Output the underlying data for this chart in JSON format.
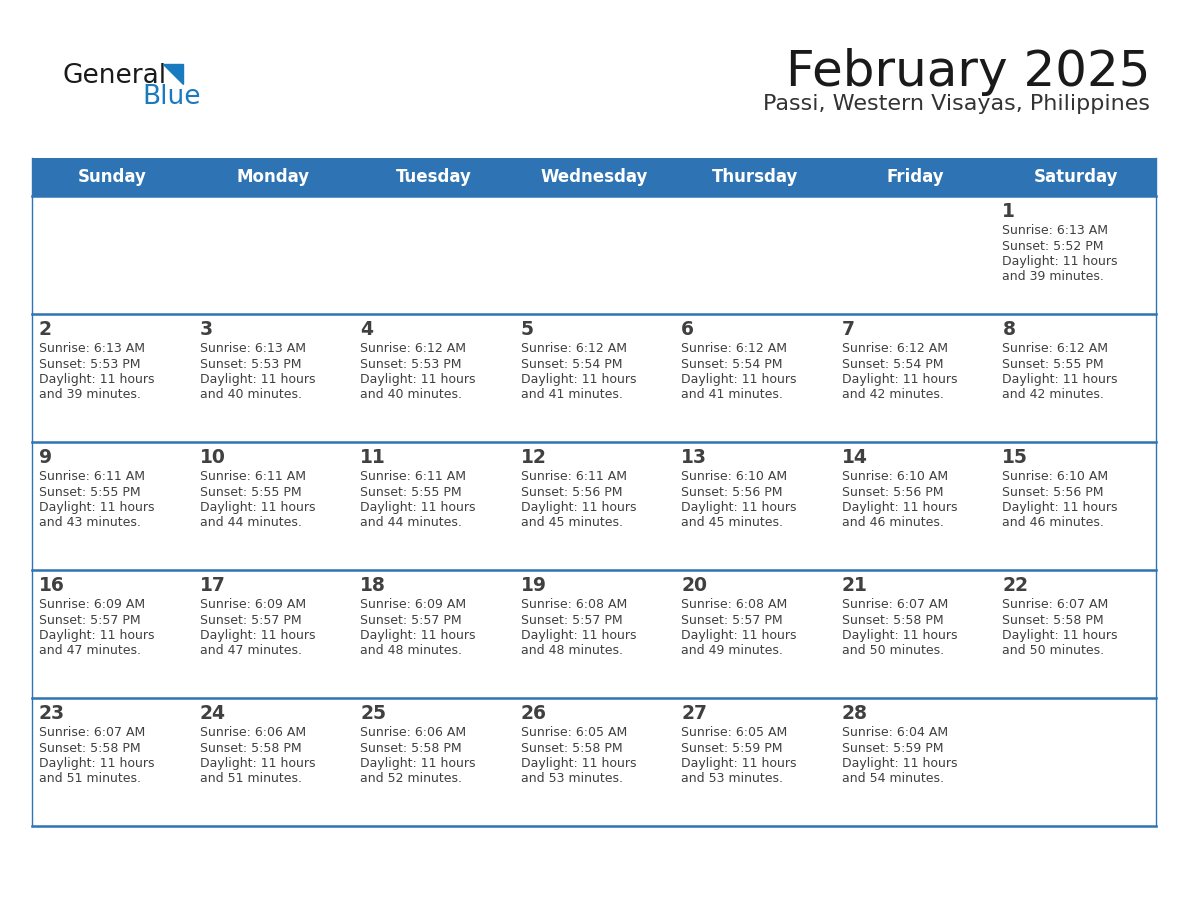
{
  "title": "February 2025",
  "subtitle": "Passi, Western Visayas, Philippines",
  "days_of_week": [
    "Sunday",
    "Monday",
    "Tuesday",
    "Wednesday",
    "Thursday",
    "Friday",
    "Saturday"
  ],
  "header_bg": "#2E74B5",
  "header_text": "#FFFFFF",
  "cell_bg": "#FFFFFF",
  "row1_bg": "#F2F2F2",
  "divider_color": "#2E74B5",
  "text_color": "#404040",
  "title_color": "#1a1a1a",
  "subtitle_color": "#333333",
  "logo_general_color": "#1a1a1a",
  "logo_blue_color": "#1a7abf",
  "calendar_data": [
    [
      null,
      null,
      null,
      null,
      null,
      null,
      {
        "day": 1,
        "sunrise": "6:13 AM",
        "sunset": "5:52 PM",
        "daylight": "11 hours and 39 minutes."
      }
    ],
    [
      {
        "day": 2,
        "sunrise": "6:13 AM",
        "sunset": "5:53 PM",
        "daylight": "11 hours and 39 minutes."
      },
      {
        "day": 3,
        "sunrise": "6:13 AM",
        "sunset": "5:53 PM",
        "daylight": "11 hours and 40 minutes."
      },
      {
        "day": 4,
        "sunrise": "6:12 AM",
        "sunset": "5:53 PM",
        "daylight": "11 hours and 40 minutes."
      },
      {
        "day": 5,
        "sunrise": "6:12 AM",
        "sunset": "5:54 PM",
        "daylight": "11 hours and 41 minutes."
      },
      {
        "day": 6,
        "sunrise": "6:12 AM",
        "sunset": "5:54 PM",
        "daylight": "11 hours and 41 minutes."
      },
      {
        "day": 7,
        "sunrise": "6:12 AM",
        "sunset": "5:54 PM",
        "daylight": "11 hours and 42 minutes."
      },
      {
        "day": 8,
        "sunrise": "6:12 AM",
        "sunset": "5:55 PM",
        "daylight": "11 hours and 42 minutes."
      }
    ],
    [
      {
        "day": 9,
        "sunrise": "6:11 AM",
        "sunset": "5:55 PM",
        "daylight": "11 hours and 43 minutes."
      },
      {
        "day": 10,
        "sunrise": "6:11 AM",
        "sunset": "5:55 PM",
        "daylight": "11 hours and 44 minutes."
      },
      {
        "day": 11,
        "sunrise": "6:11 AM",
        "sunset": "5:55 PM",
        "daylight": "11 hours and 44 minutes."
      },
      {
        "day": 12,
        "sunrise": "6:11 AM",
        "sunset": "5:56 PM",
        "daylight": "11 hours and 45 minutes."
      },
      {
        "day": 13,
        "sunrise": "6:10 AM",
        "sunset": "5:56 PM",
        "daylight": "11 hours and 45 minutes."
      },
      {
        "day": 14,
        "sunrise": "6:10 AM",
        "sunset": "5:56 PM",
        "daylight": "11 hours and 46 minutes."
      },
      {
        "day": 15,
        "sunrise": "6:10 AM",
        "sunset": "5:56 PM",
        "daylight": "11 hours and 46 minutes."
      }
    ],
    [
      {
        "day": 16,
        "sunrise": "6:09 AM",
        "sunset": "5:57 PM",
        "daylight": "11 hours and 47 minutes."
      },
      {
        "day": 17,
        "sunrise": "6:09 AM",
        "sunset": "5:57 PM",
        "daylight": "11 hours and 47 minutes."
      },
      {
        "day": 18,
        "sunrise": "6:09 AM",
        "sunset": "5:57 PM",
        "daylight": "11 hours and 48 minutes."
      },
      {
        "day": 19,
        "sunrise": "6:08 AM",
        "sunset": "5:57 PM",
        "daylight": "11 hours and 48 minutes."
      },
      {
        "day": 20,
        "sunrise": "6:08 AM",
        "sunset": "5:57 PM",
        "daylight": "11 hours and 49 minutes."
      },
      {
        "day": 21,
        "sunrise": "6:07 AM",
        "sunset": "5:58 PM",
        "daylight": "11 hours and 50 minutes."
      },
      {
        "day": 22,
        "sunrise": "6:07 AM",
        "sunset": "5:58 PM",
        "daylight": "11 hours and 50 minutes."
      }
    ],
    [
      {
        "day": 23,
        "sunrise": "6:07 AM",
        "sunset": "5:58 PM",
        "daylight": "11 hours and 51 minutes."
      },
      {
        "day": 24,
        "sunrise": "6:06 AM",
        "sunset": "5:58 PM",
        "daylight": "11 hours and 51 minutes."
      },
      {
        "day": 25,
        "sunrise": "6:06 AM",
        "sunset": "5:58 PM",
        "daylight": "11 hours and 52 minutes."
      },
      {
        "day": 26,
        "sunrise": "6:05 AM",
        "sunset": "5:58 PM",
        "daylight": "11 hours and 53 minutes."
      },
      {
        "day": 27,
        "sunrise": "6:05 AM",
        "sunset": "5:59 PM",
        "daylight": "11 hours and 53 minutes."
      },
      {
        "day": 28,
        "sunrise": "6:04 AM",
        "sunset": "5:59 PM",
        "daylight": "11 hours and 54 minutes."
      },
      null
    ]
  ]
}
